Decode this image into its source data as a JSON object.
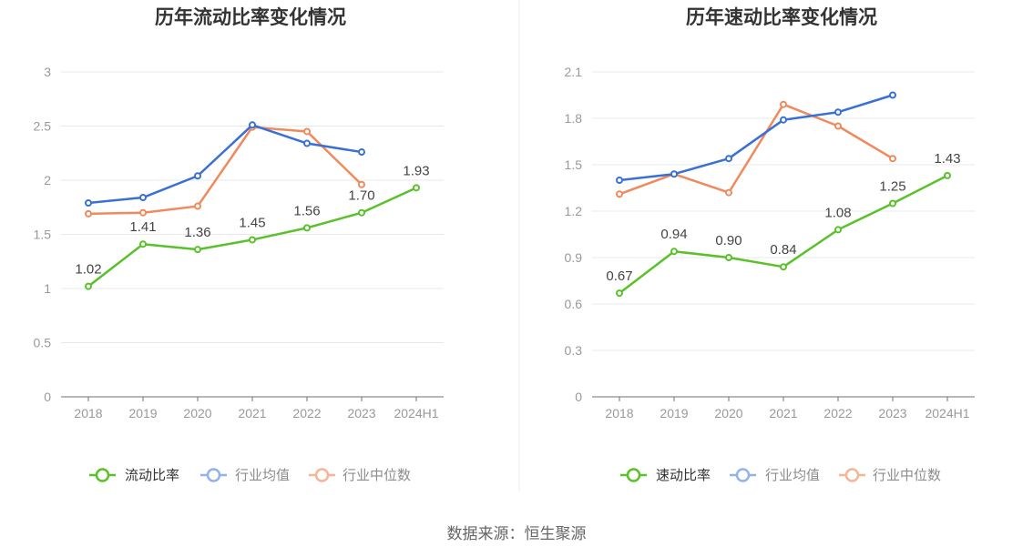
{
  "footer": {
    "source": "数据来源：恒生聚源"
  },
  "chart_data": [
    {
      "type": "line",
      "title": "历年流动比率变化情况",
      "categories": [
        "2018",
        "2019",
        "2020",
        "2021",
        "2022",
        "2023",
        "2024H1"
      ],
      "xlabel": "",
      "ylabel": "",
      "ylim": [
        0,
        3
      ],
      "yticks": [
        0,
        0.5,
        1,
        1.5,
        2,
        2.5,
        3
      ],
      "ytick_labels": [
        "0",
        "0.5",
        "1",
        "1.5",
        "2",
        "2.5",
        "3"
      ],
      "grid": true,
      "legend": "bottom-center",
      "series": [
        {
          "name": "流动比率",
          "color": "#5ac12b",
          "legend_color": "#5ac12b",
          "values": [
            1.02,
            1.41,
            1.36,
            1.45,
            1.56,
            1.7,
            1.93
          ],
          "data_labels": [
            "1.02",
            "1.41",
            "1.36",
            "1.45",
            "1.56",
            "1.70",
            "1.93"
          ]
        },
        {
          "name": "行业均值",
          "color": "#3a70d6",
          "legend_color": "#93b2ec",
          "values": [
            1.79,
            1.84,
            2.04,
            2.51,
            2.34,
            2.26,
            null
          ]
        },
        {
          "name": "行业中位数",
          "color": "#f0895c",
          "legend_color": "#f6b597",
          "values": [
            1.69,
            1.7,
            1.76,
            2.49,
            2.45,
            1.96,
            null
          ]
        }
      ]
    },
    {
      "type": "line",
      "title": "历年速动比率变化情况",
      "categories": [
        "2018",
        "2019",
        "2020",
        "2021",
        "2022",
        "2023",
        "2024H1"
      ],
      "xlabel": "",
      "ylabel": "",
      "ylim": [
        0,
        2.1
      ],
      "yticks": [
        0,
        0.3,
        0.6,
        0.9,
        1.2,
        1.5,
        1.8,
        2.1
      ],
      "ytick_labels": [
        "0",
        "0.3",
        "0.6",
        "0.9",
        "1.2",
        "1.5",
        "1.8",
        "2.1"
      ],
      "grid": true,
      "legend": "bottom-center",
      "series": [
        {
          "name": "速动比率",
          "color": "#5ac12b",
          "legend_color": "#5ac12b",
          "values": [
            0.67,
            0.94,
            0.9,
            0.84,
            1.08,
            1.25,
            1.43
          ],
          "data_labels": [
            "0.67",
            "0.94",
            "0.90",
            "0.84",
            "1.08",
            "1.25",
            "1.43"
          ]
        },
        {
          "name": "行业均值",
          "color": "#3a70d6",
          "legend_color": "#93b2ec",
          "values": [
            1.4,
            1.44,
            1.54,
            1.79,
            1.84,
            1.95,
            null
          ]
        },
        {
          "name": "行业中位数",
          "color": "#f0895c",
          "legend_color": "#f6b597",
          "values": [
            1.31,
            1.44,
            1.32,
            1.89,
            1.75,
            1.54,
            null
          ]
        }
      ]
    }
  ]
}
